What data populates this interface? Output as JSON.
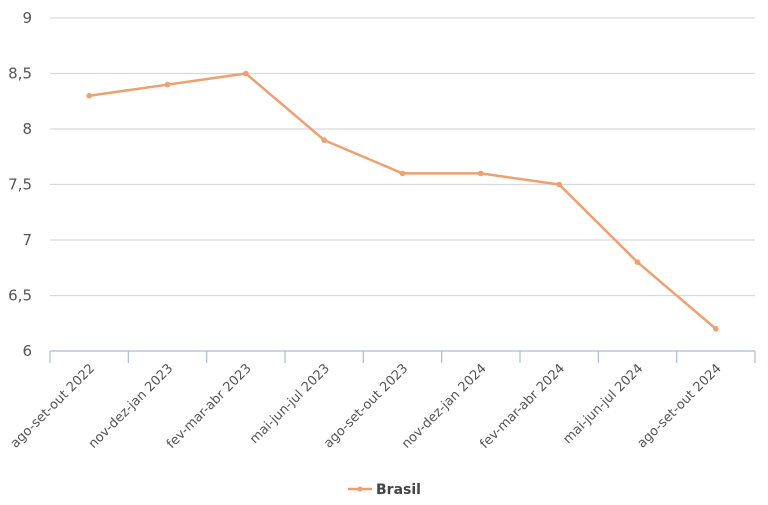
{
  "chart_data": {
    "type": "line",
    "title": "",
    "xlabel": "",
    "ylabel": "",
    "categories": [
      "ago-set-out 2022",
      "nov-dez-jan 2023",
      "fev-mar-abr 2023",
      "mai-jun-jul 2023",
      "ago-set-out 2023",
      "nov-dez-jan 2024",
      "fev-mar-abr 2024",
      "mai-jun-jul 2024",
      "ago-set-out 2024"
    ],
    "series": [
      {
        "name": "Brasil",
        "color": "#F0A070",
        "values": [
          8.3,
          8.4,
          8.5,
          7.9,
          7.6,
          7.6,
          7.5,
          6.8,
          6.2
        ]
      }
    ],
    "ylim": [
      6,
      9
    ],
    "yticks": [
      6,
      6.5,
      7,
      7.5,
      8,
      8.5,
      9
    ],
    "ytick_labels": [
      "6",
      "6,5",
      "7",
      "7,5",
      "8",
      "8,5",
      "9"
    ],
    "grid": true,
    "legend_position": "bottom"
  },
  "legend": {
    "label": "Brasil"
  },
  "colors": {
    "line": "#F0A070",
    "grid": "#d9d9d9",
    "axis": "#a9bcd9"
  }
}
